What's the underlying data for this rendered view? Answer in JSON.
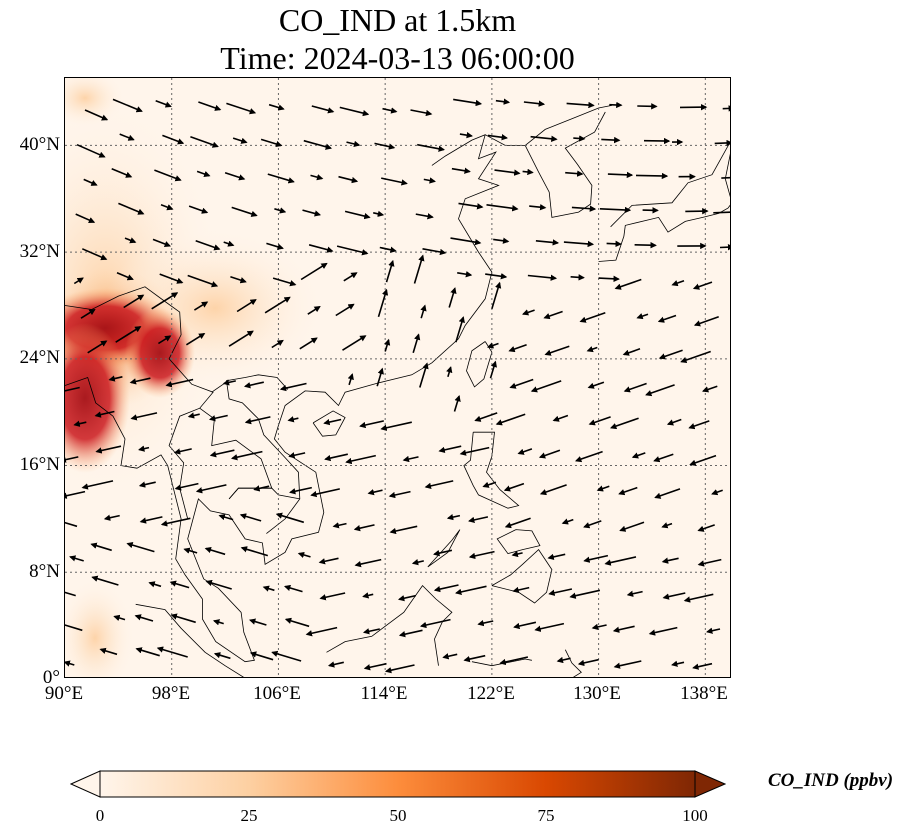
{
  "title": {
    "line1": "CO_IND at 1.5km",
    "line2": "Time: 2024-03-13 06:00:00"
  },
  "map": {
    "lon_range": [
      90,
      140
    ],
    "lat_range": [
      0,
      45
    ],
    "lat_ticks": [
      "0°",
      "8°N",
      "16°N",
      "24°N",
      "32°N",
      "40°N"
    ],
    "lon_ticks": [
      "90°E",
      "98°E",
      "106°E",
      "114°E",
      "122°E",
      "130°E",
      "138°E"
    ],
    "gridlines": true,
    "field": "CO_IND concentration shaded, high values over western area (Myanmar / Yunnan border)",
    "wind_vectors": true
  },
  "colorbar": {
    "label": "CO_IND (ppbv)",
    "ticks": [
      "0",
      "25",
      "50",
      "75",
      "100"
    ],
    "colors": [
      "#fff5eb",
      "#fdd0a2",
      "#fd8d3c",
      "#d94801",
      "#7f2704"
    ],
    "extend": "both"
  }
}
